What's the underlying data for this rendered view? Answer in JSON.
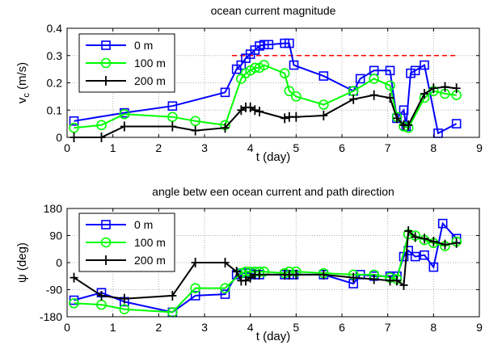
{
  "chart_data": [
    {
      "type": "line",
      "title": "ocean current magnitude",
      "xlabel": "t (day)",
      "ylabel": "v_c (m/s)",
      "ylabel_main": "v",
      "ylabel_sub": "c",
      "ylabel_rest": " (m/s)",
      "xlim": [
        0,
        9
      ],
      "ylim": [
        0,
        0.4
      ],
      "x_ticks": [
        "0",
        "1",
        "2",
        "3",
        "4",
        "5",
        "6",
        "7",
        "8",
        "9"
      ],
      "y_ticks": [
        "0",
        "0.1",
        "0.2",
        "0.3",
        "0.4"
      ],
      "grid": true,
      "legend_position": "top-left",
      "reference_line": {
        "y": 0.3,
        "x_start": 3.6,
        "x_end": 8.5,
        "color": "#ff0000",
        "style": "dashed"
      },
      "series": [
        {
          "name": "0 m",
          "color": "#0000ff",
          "marker": "square",
          "x": [
            0.15,
            1.25,
            2.3,
            3.45,
            3.7,
            3.8,
            3.9,
            4.0,
            4.1,
            4.2,
            4.3,
            4.4,
            4.75,
            4.85,
            4.95,
            5.6,
            6.25,
            6.4,
            6.7,
            7.05,
            7.2,
            7.35,
            7.4,
            7.5,
            7.6,
            7.8,
            8.1,
            8.5
          ],
          "y": [
            0.06,
            0.09,
            0.115,
            0.165,
            0.25,
            0.265,
            0.29,
            0.305,
            0.32,
            0.335,
            0.34,
            0.34,
            0.345,
            0.345,
            0.265,
            0.225,
            0.17,
            0.215,
            0.245,
            0.245,
            0.07,
            0.1,
            0.04,
            0.235,
            0.245,
            0.265,
            0.015,
            0.05
          ]
        },
        {
          "name": "100 m",
          "color": "#00ff00",
          "marker": "circle",
          "x": [
            0.15,
            0.75,
            1.25,
            2.3,
            2.8,
            3.45,
            3.8,
            3.9,
            4.0,
            4.1,
            4.2,
            4.3,
            4.75,
            4.85,
            5.0,
            5.6,
            6.25,
            6.7,
            7.05,
            7.2,
            7.35,
            7.45,
            7.8,
            8.0,
            8.25,
            8.5
          ],
          "y": [
            0.035,
            0.045,
            0.085,
            0.075,
            0.06,
            0.045,
            0.215,
            0.235,
            0.245,
            0.255,
            0.255,
            0.265,
            0.235,
            0.17,
            0.15,
            0.12,
            0.17,
            0.215,
            0.19,
            0.075,
            0.04,
            0.035,
            0.145,
            0.17,
            0.16,
            0.155
          ]
        },
        {
          "name": "200 m",
          "color": "#000000",
          "marker": "plus",
          "x": [
            0.15,
            0.75,
            1.25,
            2.3,
            2.8,
            3.45,
            3.8,
            3.9,
            4.0,
            4.1,
            4.2,
            4.75,
            4.85,
            5.0,
            5.6,
            6.25,
            6.7,
            7.05,
            7.2,
            7.35,
            7.45,
            7.8,
            8.0,
            8.25,
            8.5
          ],
          "y": [
            0.0,
            0.0,
            0.04,
            0.04,
            0.025,
            0.035,
            0.1,
            0.11,
            0.11,
            0.1,
            0.095,
            0.07,
            0.075,
            0.075,
            0.08,
            0.14,
            0.155,
            0.145,
            0.07,
            0.045,
            0.045,
            0.16,
            0.18,
            0.185,
            0.18
          ]
        }
      ]
    },
    {
      "type": "line",
      "title": "angle betw een ocean current and path direction",
      "xlabel": "t (day)",
      "ylabel": "ψ (deg)",
      "xlim": [
        0,
        9
      ],
      "ylim": [
        -180,
        180
      ],
      "x_ticks": [
        "0",
        "1",
        "2",
        "3",
        "4",
        "5",
        "6",
        "7",
        "8",
        "9"
      ],
      "y_ticks": [
        "-180",
        "-90",
        "0",
        "90",
        "180"
      ],
      "grid": true,
      "legend_position": "top-left",
      "series": [
        {
          "name": "0 m",
          "color": "#0000ff",
          "marker": "square",
          "x": [
            0.15,
            0.75,
            1.25,
            2.3,
            2.8,
            3.45,
            3.7,
            3.8,
            3.9,
            4.0,
            4.1,
            4.2,
            4.75,
            4.85,
            4.95,
            5.6,
            6.25,
            6.4,
            6.7,
            7.05,
            7.2,
            7.35,
            7.45,
            7.6,
            7.8,
            8.0,
            8.2,
            8.5
          ],
          "y": [
            -125,
            -100,
            -130,
            -165,
            -110,
            -105,
            -40,
            -35,
            -35,
            -35,
            -40,
            -40,
            -40,
            -40,
            -40,
            -40,
            -70,
            -40,
            -45,
            -45,
            -45,
            20,
            40,
            20,
            25,
            -15,
            130,
            80
          ]
        },
        {
          "name": "100 m",
          "color": "#00ff00",
          "marker": "circle",
          "x": [
            0.15,
            0.75,
            1.25,
            2.3,
            2.8,
            3.45,
            3.8,
            3.9,
            4.0,
            4.1,
            4.2,
            4.3,
            4.75,
            4.85,
            5.0,
            5.6,
            6.25,
            6.7,
            7.05,
            7.2,
            7.45,
            7.6,
            7.8,
            8.0,
            8.25,
            8.5
          ],
          "y": [
            -135,
            -140,
            -155,
            -165,
            -85,
            -85,
            -35,
            -30,
            -30,
            -30,
            -30,
            -30,
            -35,
            -30,
            -30,
            -35,
            -40,
            -40,
            -50,
            -55,
            95,
            90,
            75,
            65,
            55,
            70
          ]
        },
        {
          "name": "200 m",
          "color": "#000000",
          "marker": "plus",
          "x": [
            0.15,
            0.75,
            1.25,
            2.3,
            2.8,
            3.45,
            3.7,
            3.8,
            3.9,
            4.0,
            4.1,
            4.2,
            4.75,
            4.85,
            5.0,
            5.6,
            6.25,
            6.7,
            7.05,
            7.2,
            7.35,
            7.45,
            7.6,
            7.8,
            8.0,
            8.25,
            8.5
          ],
          "y": [
            -50,
            -110,
            -120,
            -110,
            0,
            0,
            -30,
            -60,
            -60,
            -50,
            -40,
            -40,
            -40,
            -40,
            -40,
            -40,
            -50,
            -55,
            -60,
            -60,
            -75,
            105,
            85,
            80,
            70,
            60,
            65
          ]
        }
      ]
    }
  ]
}
